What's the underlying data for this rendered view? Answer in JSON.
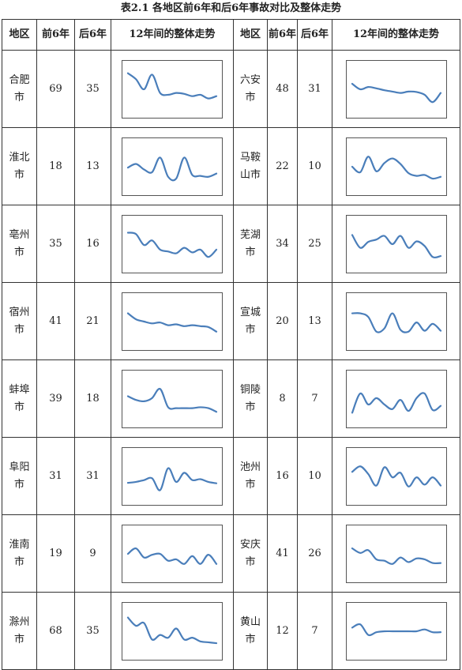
{
  "title": "表2.1 各地区前6年和后6年事故对比及整体走势",
  "headers": {
    "region": "地区",
    "first6": "前6年",
    "last6": "后6年",
    "trend": "12年间的整体走势"
  },
  "rows": [
    {
      "left": {
        "name": "合肥市",
        "first6": "69",
        "last6": "35",
        "trend": [
          8.5,
          7.2,
          5.0,
          8.2,
          4.2,
          3.8,
          4.2,
          4.0,
          3.5,
          3.8,
          3.0,
          3.5
        ]
      },
      "right": {
        "name": "六安市",
        "first6": "48",
        "last6": "31",
        "trend": [
          6.2,
          5.0,
          5.5,
          5.2,
          4.8,
          4.5,
          4.2,
          4.5,
          4.4,
          3.8,
          2.2,
          4.2
        ]
      }
    },
    {
      "left": {
        "name": "淮北市",
        "first6": "18",
        "last6": "13",
        "trend": [
          4.8,
          5.6,
          4.4,
          3.8,
          7.0,
          2.8,
          2.4,
          7.0,
          3.2,
          3.0,
          2.8,
          3.5
        ]
      },
      "right": {
        "name": "马鞍山市",
        "first6": "22",
        "last6": "10",
        "trend": [
          5.0,
          3.8,
          7.2,
          4.0,
          5.8,
          6.8,
          5.6,
          3.6,
          3.0,
          3.2,
          2.4,
          2.8
        ]
      }
    },
    {
      "left": {
        "name": "亳州市",
        "first6": "35",
        "last6": "16",
        "trend": [
          7.5,
          7.2,
          4.8,
          5.8,
          3.8,
          3.4,
          3.0,
          4.2,
          3.2,
          3.8,
          2.2,
          3.8
        ]
      },
      "right": {
        "name": "芜湖市",
        "first6": "34",
        "last6": "25",
        "trend": [
          7.0,
          4.2,
          5.5,
          6.0,
          6.8,
          5.0,
          6.8,
          4.2,
          5.6,
          4.6,
          2.2,
          2.4
        ]
      }
    },
    {
      "left": {
        "name": "宿州市",
        "first6": "41",
        "last6": "21",
        "trend": [
          6.8,
          5.5,
          5.0,
          4.6,
          4.8,
          4.2,
          4.4,
          4.0,
          4.2,
          4.0,
          3.8,
          2.8
        ]
      },
      "right": {
        "name": "宣城市",
        "first6": "20",
        "last6": "13",
        "trend": [
          6.8,
          6.8,
          6.0,
          2.8,
          3.5,
          6.8,
          3.2,
          2.8,
          4.8,
          3.0,
          4.5,
          3.0
        ]
      }
    },
    {
      "left": {
        "name": "蚌埠市",
        "first6": "39",
        "last6": "18",
        "trend": [
          5.6,
          4.8,
          4.5,
          5.2,
          7.2,
          3.2,
          3.0,
          3.0,
          3.0,
          3.2,
          3.0,
          2.2
        ]
      },
      "right": {
        "name": "铜陵市",
        "first6": "8",
        "last6": "7",
        "trend": [
          2.0,
          6.2,
          3.8,
          5.2,
          3.8,
          2.8,
          4.8,
          2.4,
          5.2,
          6.2,
          2.6,
          3.5
        ]
      }
    },
    {
      "left": {
        "name": "阜阳市",
        "first6": "31",
        "last6": "31",
        "trend": [
          3.6,
          3.8,
          4.2,
          4.6,
          2.0,
          6.8,
          3.8,
          5.8,
          4.2,
          4.4,
          3.8,
          3.5
        ]
      },
      "right": {
        "name": "池州市",
        "first6": "16",
        "last6": "10",
        "trend": [
          6.0,
          7.2,
          5.5,
          3.0,
          7.0,
          4.8,
          5.8,
          2.8,
          4.8,
          3.2,
          4.8,
          3.0
        ]
      }
    },
    {
      "left": {
        "name": "淮南市",
        "first6": "19",
        "last6": "9",
        "trend": [
          5.0,
          6.2,
          4.2,
          4.8,
          5.0,
          3.5,
          3.8,
          2.8,
          4.5,
          2.8,
          4.8,
          2.8
        ]
      },
      "right": {
        "name": "安庆市",
        "first6": "41",
        "last6": "26",
        "trend": [
          6.2,
          5.2,
          5.8,
          3.8,
          3.5,
          2.8,
          4.2,
          3.2,
          4.0,
          3.8,
          3.0,
          3.0
        ]
      }
    },
    {
      "left": {
        "name": "滁州市",
        "first6": "68",
        "last6": "35",
        "trend": [
          8.0,
          6.2,
          6.8,
          3.2,
          4.2,
          3.6,
          5.6,
          3.2,
          3.6,
          2.8,
          2.6,
          2.4
        ]
      },
      "right": {
        "name": "黄山市",
        "first6": "12",
        "last6": "7",
        "trend": [
          5.8,
          6.5,
          4.2,
          4.8,
          5.0,
          5.0,
          5.0,
          5.0,
          5.0,
          5.4,
          4.8,
          4.8
        ]
      }
    }
  ],
  "colors": {
    "line": "#4a7eba",
    "border": "#333333"
  }
}
